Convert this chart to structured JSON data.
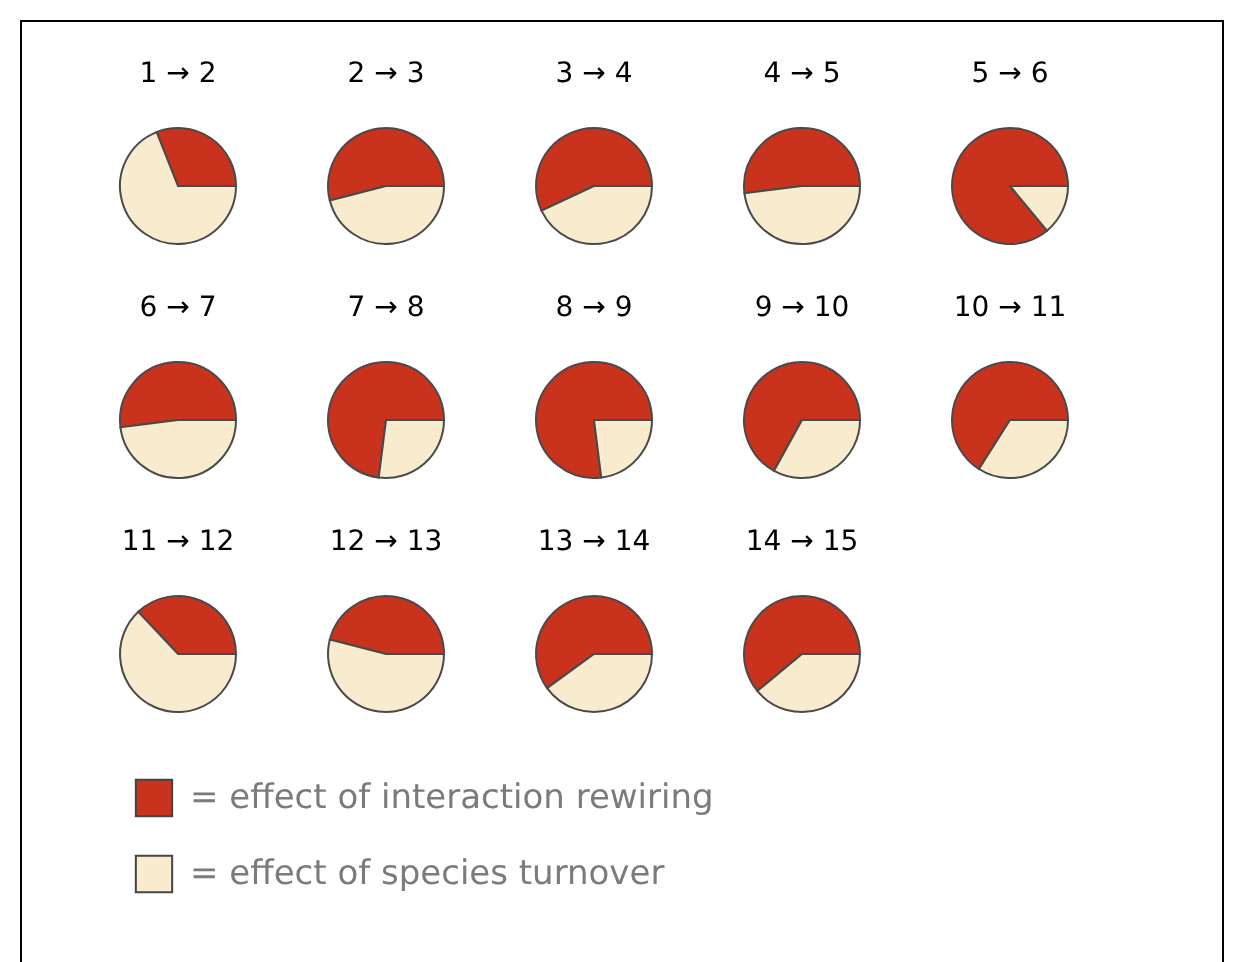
{
  "chart_data": [
    {
      "type": "pie",
      "title": "1 → 2",
      "values": [
        31,
        69
      ],
      "colors": [
        "#c9331d",
        "#f9ebcd"
      ]
    },
    {
      "type": "pie",
      "title": "2 → 3",
      "values": [
        54,
        46
      ],
      "colors": [
        "#c9331d",
        "#f9ebcd"
      ]
    },
    {
      "type": "pie",
      "title": "3 → 4",
      "values": [
        57,
        43
      ],
      "colors": [
        "#c9331d",
        "#f9ebcd"
      ]
    },
    {
      "type": "pie",
      "title": "4 → 5",
      "values": [
        52,
        48
      ],
      "colors": [
        "#c9331d",
        "#f9ebcd"
      ]
    },
    {
      "type": "pie",
      "title": "5 → 6",
      "values": [
        86,
        14
      ],
      "colors": [
        "#c9331d",
        "#f9ebcd"
      ]
    },
    {
      "type": "pie",
      "title": "6 → 7",
      "values": [
        52,
        48
      ],
      "colors": [
        "#c9331d",
        "#f9ebcd"
      ]
    },
    {
      "type": "pie",
      "title": "7 → 8",
      "values": [
        73,
        27
      ],
      "colors": [
        "#c9331d",
        "#f9ebcd"
      ]
    },
    {
      "type": "pie",
      "title": "8 → 9",
      "values": [
        77,
        23
      ],
      "colors": [
        "#c9331d",
        "#f9ebcd"
      ]
    },
    {
      "type": "pie",
      "title": "9 → 10",
      "values": [
        67,
        33
      ],
      "colors": [
        "#c9331d",
        "#f9ebcd"
      ]
    },
    {
      "type": "pie",
      "title": "10 → 11",
      "values": [
        66,
        34
      ],
      "colors": [
        "#c9331d",
        "#f9ebcd"
      ]
    },
    {
      "type": "pie",
      "title": "11 → 12",
      "categories": [
        "= effect of interaction rewiring",
        "= effect of species turnover"
      ],
      "values": [
        37,
        63
      ],
      "colors": [
        "#c9331d",
        "#f9ebcd"
      ],
      "legend": "bottom"
    },
    {
      "type": "pie",
      "title": "12 → 13",
      "values": [
        46,
        54
      ],
      "colors": [
        "#c9331d",
        "#f9ebcd"
      ]
    },
    {
      "type": "pie",
      "title": "13 → 14",
      "values": [
        60,
        40
      ],
      "colors": [
        "#c9331d",
        "#f9ebcd"
      ]
    },
    {
      "type": "pie",
      "title": "14 → 15",
      "values": [
        61,
        39
      ],
      "colors": [
        "#c9331d",
        "#f9ebcd"
      ]
    }
  ]
}
